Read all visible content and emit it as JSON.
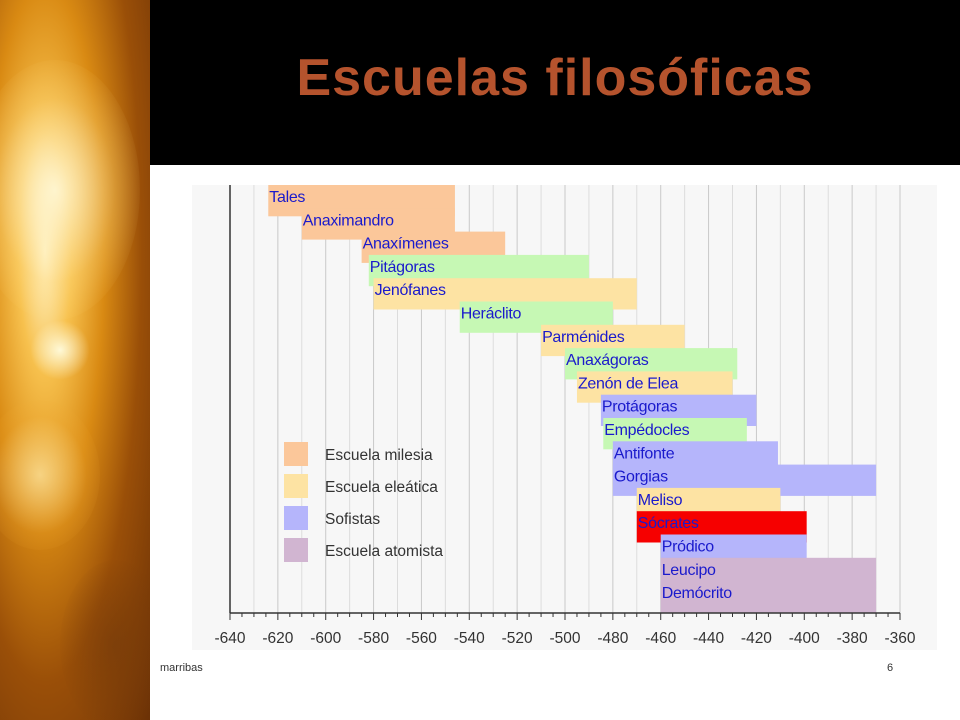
{
  "slide": {
    "title": "Escuelas filosóficas",
    "footer_left": "marribas",
    "page_number": "6"
  },
  "colors": {
    "title": "#b5532d",
    "header_bg": "#000000",
    "milesia": "#fbc79a",
    "eleatica": "#fde3a3",
    "sofistas": "#b5b5fb",
    "atomista": "#d1b5d1",
    "green": "#c6f8b4",
    "red": "#f60000"
  },
  "chart_data": {
    "type": "bar",
    "orientation": "horizontal-range",
    "title": "",
    "xlabel": "",
    "ylabel": "",
    "xlim": [
      -640,
      -360
    ],
    "xticks": [
      -640,
      -620,
      -600,
      -580,
      -560,
      -540,
      -520,
      -500,
      -480,
      -460,
      -440,
      -420,
      -400,
      -380,
      -360
    ],
    "grid": true,
    "legend_position": "left-middle",
    "legend": [
      {
        "label": "Escuela milesia",
        "color": "#fbc79a"
      },
      {
        "label": "Escuela eleática",
        "color": "#fde3a3"
      },
      {
        "label": "Sofistas",
        "color": "#b5b5fb"
      },
      {
        "label": "Escuela atomista",
        "color": "#d1b5d1"
      }
    ],
    "bars": [
      {
        "name": "Tales",
        "start": -624,
        "end": -546,
        "color": "#fbc79a"
      },
      {
        "name": "Anaximandro",
        "start": -610,
        "end": -546,
        "color": "#fbc79a"
      },
      {
        "name": "Anaxímenes",
        "start": -585,
        "end": -525,
        "color": "#fbc79a"
      },
      {
        "name": "Pitágoras",
        "start": -582,
        "end": -490,
        "color": "#c6f8b4"
      },
      {
        "name": "Jenófanes",
        "start": -580,
        "end": -470,
        "color": "#fde3a3"
      },
      {
        "name": "Heráclito",
        "start": -544,
        "end": -480,
        "color": "#c6f8b4"
      },
      {
        "name": "Parménides",
        "start": -510,
        "end": -450,
        "color": "#fde3a3"
      },
      {
        "name": "Anaxágoras",
        "start": -500,
        "end": -428,
        "color": "#c6f8b4"
      },
      {
        "name": "Zenón de Elea",
        "start": -495,
        "end": -430,
        "color": "#fde3a3"
      },
      {
        "name": "Protágoras",
        "start": -485,
        "end": -420,
        "color": "#b5b5fb"
      },
      {
        "name": "Empédocles",
        "start": -484,
        "end": -424,
        "color": "#c6f8b4"
      },
      {
        "name": "Antifonte",
        "start": -480,
        "end": -411,
        "color": "#b5b5fb"
      },
      {
        "name": "Gorgias",
        "start": -480,
        "end": -370,
        "color": "#b5b5fb"
      },
      {
        "name": "Meliso",
        "start": -470,
        "end": -410,
        "color": "#fde3a3"
      },
      {
        "name": "Sócrates",
        "start": -470,
        "end": -399,
        "color": "#f60000"
      },
      {
        "name": "Pródico",
        "start": -460,
        "end": -399,
        "color": "#b5b5fb"
      },
      {
        "name": "Leucipo",
        "start": -460,
        "end": -370,
        "color": "#d1b5d1"
      },
      {
        "name": "Demócrito",
        "start": -460,
        "end": -370,
        "color": "#d1b5d1"
      }
    ]
  }
}
